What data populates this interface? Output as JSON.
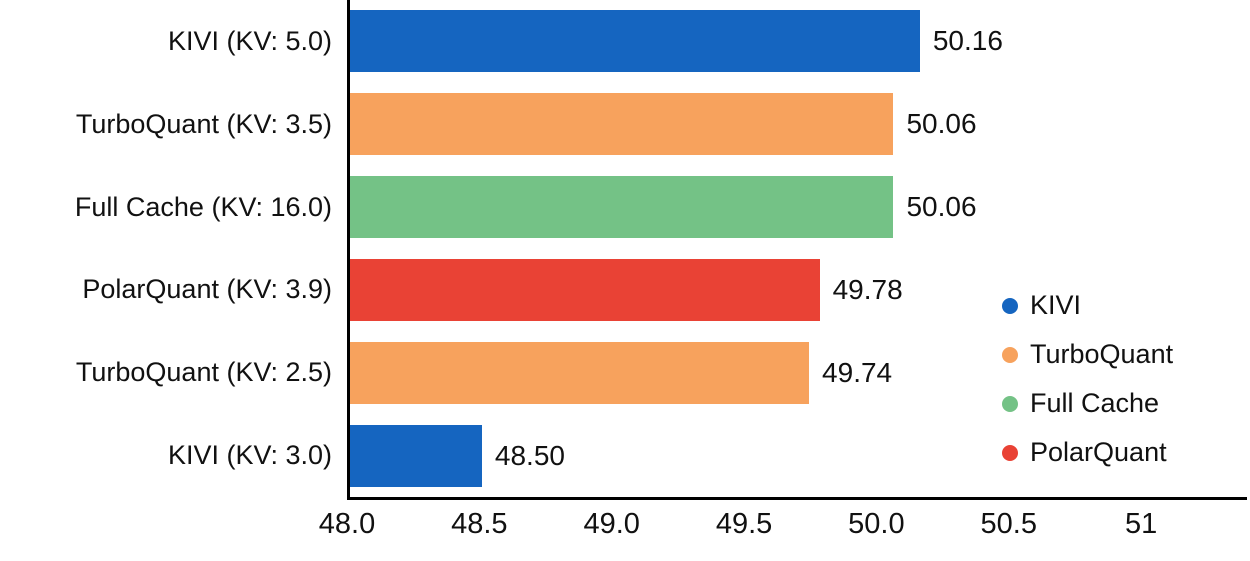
{
  "chart_data": {
    "type": "bar",
    "orientation": "horizontal",
    "title": "",
    "xlabel": "",
    "ylabel": "",
    "grid": false,
    "legend_position": "right",
    "xlim": [
      48.0,
      51.4
    ],
    "x_ticks": [
      "48.0",
      "48.5",
      "49.0",
      "49.5",
      "50.0",
      "50.5",
      "51"
    ],
    "x_tick_values": [
      48.0,
      48.5,
      49.0,
      49.5,
      50.0,
      50.5,
      51.0
    ],
    "rows": [
      {
        "label": "KIVI (KV: 5.0)",
        "value": 50.16,
        "value_label": "50.16",
        "series": "KIVI"
      },
      {
        "label": "TurboQuant (KV: 3.5)",
        "value": 50.06,
        "value_label": "50.06",
        "series": "TurboQuant"
      },
      {
        "label": "Full Cache (KV: 16.0)",
        "value": 50.06,
        "value_label": "50.06",
        "series": "Full Cache"
      },
      {
        "label": "PolarQuant (KV: 3.9)",
        "value": 49.78,
        "value_label": "49.78",
        "series": "PolarQuant"
      },
      {
        "label": "TurboQuant (KV: 2.5)",
        "value": 49.74,
        "value_label": "49.74",
        "series": "TurboQuant"
      },
      {
        "label": "KIVI (KV: 3.0)",
        "value": 48.5,
        "value_label": "48.50",
        "series": "KIVI"
      }
    ],
    "colors": {
      "KIVI": "#1565C0",
      "TurboQuant": "#F7A25D",
      "Full Cache": "#74C286",
      "PolarQuant": "#E94235"
    },
    "legend": [
      "KIVI",
      "TurboQuant",
      "Full Cache",
      "PolarQuant"
    ]
  }
}
